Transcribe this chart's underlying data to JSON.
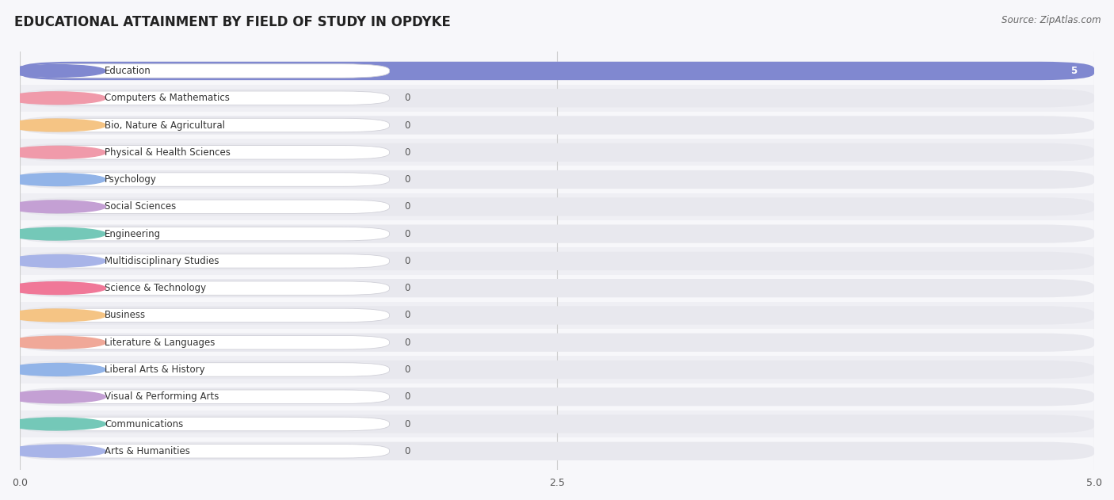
{
  "title": "EDUCATIONAL ATTAINMENT BY FIELD OF STUDY IN OPDYKE",
  "source": "Source: ZipAtlas.com",
  "categories": [
    "Education",
    "Computers & Mathematics",
    "Bio, Nature & Agricultural",
    "Physical & Health Sciences",
    "Psychology",
    "Social Sciences",
    "Engineering",
    "Multidisciplinary Studies",
    "Science & Technology",
    "Business",
    "Literature & Languages",
    "Liberal Arts & History",
    "Visual & Performing Arts",
    "Communications",
    "Arts & Humanities"
  ],
  "values": [
    5,
    0,
    0,
    0,
    0,
    0,
    0,
    0,
    0,
    0,
    0,
    0,
    0,
    0,
    0
  ],
  "bar_colors": [
    "#8088d0",
    "#f09aaa",
    "#f5c484",
    "#f09aaa",
    "#92b4e8",
    "#c4a0d4",
    "#74c8b8",
    "#a8b4e8",
    "#f07898",
    "#f5c484",
    "#f0a898",
    "#92b4e8",
    "#c4a0d4",
    "#74c8b8",
    "#a8b4e8"
  ],
  "xlim": [
    0,
    5
  ],
  "xticks": [
    0,
    2.5,
    5
  ],
  "background_color": "#f7f7fa",
  "bar_bg_color": "#e8e8ee",
  "row_alt_color": "#efeff4",
  "title_fontsize": 12,
  "source_fontsize": 8.5,
  "label_fontsize": 8.5,
  "value_fontsize": 8.5
}
